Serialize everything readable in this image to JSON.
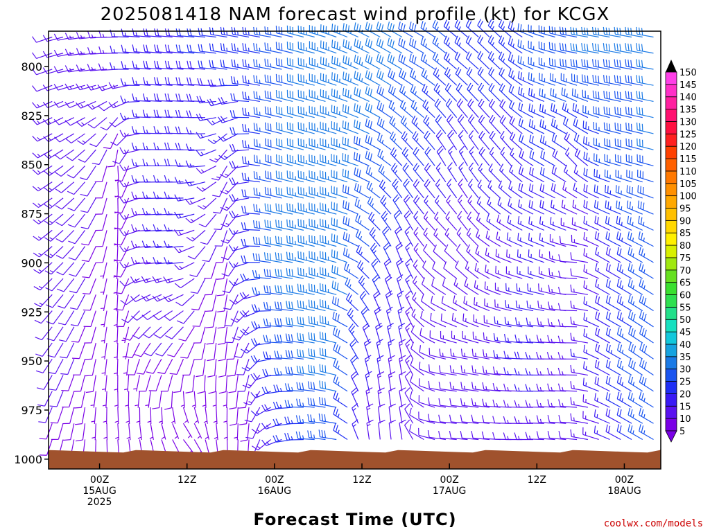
{
  "chart_data": {
    "type": "wind-barb-time-height",
    "title": "2025081418 NAM forecast wind profile (kt) for KCGX",
    "xlabel": "Forecast Time (UTC)",
    "ylabel": "",
    "credit": "coolwx.com/models",
    "y_axis": {
      "inverted": true,
      "ylim": [
        1005,
        782
      ],
      "ticks": [
        800,
        825,
        850,
        875,
        900,
        925,
        950,
        975,
        1000
      ]
    },
    "x_axis": {
      "xlim": [
        -7,
        77
      ],
      "ticks": [
        {
          "hour": 0,
          "label": [
            "00Z",
            "15AUG",
            "2025"
          ]
        },
        {
          "hour": 12,
          "label": [
            "12Z"
          ]
        },
        {
          "hour": 24,
          "label": [
            "00Z",
            "16AUG"
          ]
        },
        {
          "hour": 36,
          "label": [
            "12Z"
          ]
        },
        {
          "hour": 48,
          "label": [
            "00Z",
            "17AUG"
          ]
        },
        {
          "hour": 60,
          "label": [
            "12Z"
          ]
        },
        {
          "hour": 72,
          "label": [
            "00Z",
            "18AUG"
          ]
        }
      ]
    },
    "colorbar": {
      "label_values": [
        5,
        10,
        15,
        20,
        25,
        30,
        35,
        40,
        45,
        50,
        55,
        60,
        65,
        70,
        75,
        80,
        85,
        90,
        95,
        100,
        105,
        110,
        115,
        120,
        125,
        130,
        135,
        140,
        145,
        150
      ],
      "colors": [
        "#7a00e6",
        "#5a12f0",
        "#3a1af5",
        "#1f2ff5",
        "#1a55f0",
        "#1a7ae6",
        "#16a3e0",
        "#12c8dc",
        "#16e0c0",
        "#22e08a",
        "#2ee050",
        "#3ae030",
        "#66e020",
        "#a0e810",
        "#d8f000",
        "#fff000",
        "#ffd800",
        "#ffc000",
        "#ffa800",
        "#ff9000",
        "#ff7800",
        "#ff6000",
        "#ff4000",
        "#ff2020",
        "#ff1040",
        "#ff1070",
        "#ff20a0",
        "#ff30c8",
        "#ff40e8"
      ]
    },
    "surface_pressure_hpa": 996,
    "series": [
      {
        "x": -7,
        "winds": [
          [
            800,
            12,
            250
          ],
          [
            850,
            14,
            240
          ],
          [
            900,
            13,
            230
          ],
          [
            950,
            12,
            215
          ],
          [
            985,
            10,
            200
          ]
        ]
      },
      {
        "x": -3,
        "winds": [
          [
            800,
            12,
            260
          ],
          [
            850,
            12,
            230
          ],
          [
            900,
            12,
            220
          ],
          [
            950,
            10,
            200
          ],
          [
            985,
            8,
            190
          ]
        ]
      },
      {
        "x": 0,
        "winds": [
          [
            800,
            14,
            265
          ],
          [
            850,
            12,
            210
          ],
          [
            900,
            8,
            200
          ],
          [
            950,
            8,
            190
          ],
          [
            985,
            6,
            180
          ]
        ]
      },
      {
        "x": 3,
        "winds": [
          [
            800,
            15,
            270
          ],
          [
            850,
            6,
            170
          ],
          [
            900,
            6,
            180
          ],
          [
            950,
            6,
            180
          ],
          [
            985,
            5,
            175
          ]
        ]
      },
      {
        "x": 6,
        "winds": [
          [
            800,
            17,
            275
          ],
          [
            850,
            15,
            270
          ],
          [
            900,
            14,
            265
          ],
          [
            950,
            8,
            200
          ],
          [
            985,
            6,
            170
          ]
        ]
      },
      {
        "x": 9,
        "winds": [
          [
            800,
            18,
            275
          ],
          [
            850,
            16,
            270
          ],
          [
            900,
            15,
            265
          ],
          [
            950,
            10,
            210
          ],
          [
            985,
            6,
            160
          ]
        ]
      },
      {
        "x": 12,
        "winds": [
          [
            800,
            20,
            275
          ],
          [
            850,
            18,
            270
          ],
          [
            900,
            15,
            265
          ],
          [
            950,
            8,
            200
          ],
          [
            985,
            6,
            140
          ]
        ]
      },
      {
        "x": 15,
        "winds": [
          [
            800,
            20,
            275
          ],
          [
            850,
            16,
            265
          ],
          [
            900,
            10,
            200
          ],
          [
            950,
            8,
            185
          ],
          [
            985,
            6,
            170
          ]
        ]
      },
      {
        "x": 18,
        "winds": [
          [
            800,
            22,
            280
          ],
          [
            850,
            12,
            200
          ],
          [
            900,
            9,
            190
          ],
          [
            950,
            8,
            185
          ],
          [
            985,
            6,
            180
          ]
        ]
      },
      {
        "x": 21,
        "winds": [
          [
            800,
            24,
            280
          ],
          [
            850,
            20,
            275
          ],
          [
            900,
            18,
            265
          ],
          [
            950,
            12,
            200
          ],
          [
            985,
            8,
            185
          ]
        ]
      },
      {
        "x": 24,
        "winds": [
          [
            800,
            26,
            280
          ],
          [
            850,
            28,
            285
          ],
          [
            900,
            30,
            280
          ],
          [
            950,
            22,
            270
          ],
          [
            985,
            14,
            240
          ]
        ]
      },
      {
        "x": 27,
        "winds": [
          [
            800,
            30,
            285
          ],
          [
            850,
            32,
            285
          ],
          [
            900,
            32,
            280
          ],
          [
            950,
            28,
            275
          ],
          [
            985,
            22,
            265
          ]
        ]
      },
      {
        "x": 30,
        "winds": [
          [
            800,
            34,
            285
          ],
          [
            850,
            34,
            285
          ],
          [
            900,
            34,
            285
          ],
          [
            950,
            32,
            280
          ],
          [
            985,
            26,
            275
          ]
        ]
      },
      {
        "x": 33,
        "winds": [
          [
            800,
            34,
            290
          ],
          [
            850,
            34,
            285
          ],
          [
            900,
            34,
            285
          ],
          [
            950,
            32,
            285
          ],
          [
            985,
            28,
            280
          ]
        ]
      },
      {
        "x": 36,
        "winds": [
          [
            800,
            34,
            295
          ],
          [
            850,
            30,
            290
          ],
          [
            900,
            26,
            300
          ],
          [
            950,
            20,
            340
          ],
          [
            985,
            14,
            350
          ]
        ]
      },
      {
        "x": 39,
        "winds": [
          [
            800,
            32,
            300
          ],
          [
            850,
            28,
            300
          ],
          [
            900,
            22,
            330
          ],
          [
            950,
            16,
            350
          ],
          [
            985,
            10,
            355
          ]
        ]
      },
      {
        "x": 42,
        "winds": [
          [
            800,
            30,
            300
          ],
          [
            850,
            24,
            320
          ],
          [
            900,
            18,
            340
          ],
          [
            950,
            14,
            350
          ],
          [
            985,
            10,
            350
          ]
        ]
      },
      {
        "x": 45,
        "winds": [
          [
            800,
            28,
            300
          ],
          [
            850,
            22,
            320
          ],
          [
            900,
            12,
            320
          ],
          [
            950,
            12,
            300
          ],
          [
            985,
            10,
            290
          ]
        ]
      },
      {
        "x": 48,
        "winds": [
          [
            800,
            26,
            310
          ],
          [
            850,
            18,
            330
          ],
          [
            900,
            12,
            310
          ],
          [
            950,
            12,
            280
          ],
          [
            985,
            10,
            275
          ]
        ]
      },
      {
        "x": 51,
        "winds": [
          [
            800,
            22,
            310
          ],
          [
            850,
            16,
            330
          ],
          [
            900,
            12,
            320
          ],
          [
            950,
            14,
            280
          ],
          [
            985,
            12,
            275
          ]
        ]
      },
      {
        "x": 54,
        "winds": [
          [
            800,
            22,
            315
          ],
          [
            850,
            18,
            320
          ],
          [
            900,
            14,
            300
          ],
          [
            950,
            14,
            280
          ],
          [
            985,
            12,
            275
          ]
        ]
      },
      {
        "x": 57,
        "winds": [
          [
            800,
            24,
            310
          ],
          [
            850,
            16,
            320
          ],
          [
            900,
            14,
            290
          ],
          [
            950,
            16,
            275
          ],
          [
            985,
            12,
            270
          ]
        ]
      },
      {
        "x": 60,
        "winds": [
          [
            800,
            26,
            290
          ],
          [
            850,
            20,
            300
          ],
          [
            900,
            16,
            290
          ],
          [
            950,
            18,
            270
          ],
          [
            985,
            14,
            270
          ]
        ]
      },
      {
        "x": 63,
        "winds": [
          [
            800,
            28,
            285
          ],
          [
            850,
            22,
            300
          ],
          [
            900,
            14,
            290
          ],
          [
            950,
            14,
            270
          ],
          [
            985,
            12,
            275
          ]
        ]
      },
      {
        "x": 66,
        "winds": [
          [
            800,
            30,
            280
          ],
          [
            850,
            16,
            320
          ],
          [
            900,
            10,
            270
          ],
          [
            950,
            14,
            270
          ],
          [
            985,
            12,
            275
          ]
        ]
      },
      {
        "x": 69,
        "winds": [
          [
            800,
            30,
            280
          ],
          [
            850,
            24,
            290
          ],
          [
            900,
            14,
            300
          ],
          [
            950,
            18,
            300
          ],
          [
            985,
            14,
            290
          ]
        ]
      },
      {
        "x": 72,
        "winds": [
          [
            800,
            30,
            280
          ],
          [
            850,
            28,
            285
          ],
          [
            900,
            20,
            300
          ],
          [
            950,
            24,
            300
          ],
          [
            985,
            20,
            300
          ]
        ]
      },
      {
        "x": 75,
        "winds": [
          [
            800,
            30,
            280
          ],
          [
            850,
            30,
            285
          ],
          [
            900,
            26,
            300
          ],
          [
            950,
            30,
            305
          ],
          [
            985,
            26,
            300
          ]
        ]
      }
    ]
  }
}
